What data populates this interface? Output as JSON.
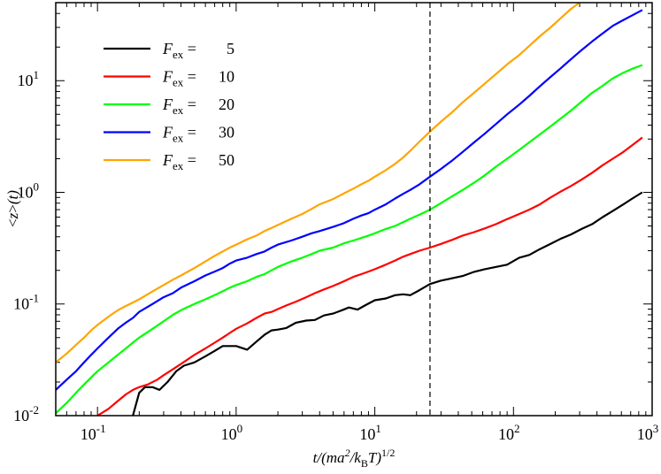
{
  "chart_data": {
    "type": "line",
    "xscale": "log",
    "yscale": "log",
    "xlim": [
      0.05,
      1000
    ],
    "ylim": [
      0.01,
      50
    ],
    "xlabel": "t/(ma2/kBT)1/2",
    "ylabel": "<z>(t)",
    "x_ticks": [
      {
        "value": 0.1,
        "base": "10",
        "exp": "-1"
      },
      {
        "value": 1,
        "base": "10",
        "exp": "0"
      },
      {
        "value": 10,
        "base": "10",
        "exp": "1"
      },
      {
        "value": 100,
        "base": "10",
        "exp": "2"
      },
      {
        "value": 1000,
        "base": "10",
        "exp": "3"
      }
    ],
    "y_ticks": [
      {
        "value": 0.01,
        "base": "10",
        "exp": "-2"
      },
      {
        "value": 0.1,
        "base": "10",
        "exp": "-1"
      },
      {
        "value": 1,
        "base": "10",
        "exp": "0"
      },
      {
        "value": 10,
        "base": "10",
        "exp": "1"
      }
    ],
    "vline": {
      "x": 25,
      "style": "dashed"
    },
    "legend_position": "top-left",
    "series": [
      {
        "name": "Fex = 5",
        "legend_value": "5",
        "color": "#000000",
        "points": [
          [
            0.18,
            0.01
          ],
          [
            0.2,
            0.016
          ],
          [
            0.22,
            0.018
          ],
          [
            0.25,
            0.018
          ],
          [
            0.28,
            0.017
          ],
          [
            0.32,
            0.02
          ],
          [
            0.37,
            0.025
          ],
          [
            0.42,
            0.028
          ],
          [
            0.5,
            0.03
          ],
          [
            0.6,
            0.034
          ],
          [
            0.7,
            0.038
          ],
          [
            0.8,
            0.042
          ],
          [
            0.9,
            0.042
          ],
          [
            1.0,
            0.042
          ],
          [
            1.2,
            0.039
          ],
          [
            1.4,
            0.046
          ],
          [
            1.6,
            0.053
          ],
          [
            1.8,
            0.058
          ],
          [
            2.0,
            0.059
          ],
          [
            2.3,
            0.061
          ],
          [
            2.7,
            0.068
          ],
          [
            3.2,
            0.071
          ],
          [
            3.7,
            0.072
          ],
          [
            4.3,
            0.079
          ],
          [
            5.0,
            0.082
          ],
          [
            5.8,
            0.088
          ],
          [
            6.5,
            0.093
          ],
          [
            7.5,
            0.089
          ],
          [
            8.5,
            0.097
          ],
          [
            10,
            0.108
          ],
          [
            12,
            0.112
          ],
          [
            14,
            0.12
          ],
          [
            16,
            0.122
          ],
          [
            18,
            0.12
          ],
          [
            21,
            0.133
          ],
          [
            25,
            0.151
          ],
          [
            30,
            0.162
          ],
          [
            36,
            0.17
          ],
          [
            43,
            0.178
          ],
          [
            52,
            0.194
          ],
          [
            62,
            0.205
          ],
          [
            75,
            0.215
          ],
          [
            90,
            0.225
          ],
          [
            110,
            0.26
          ],
          [
            130,
            0.275
          ],
          [
            155,
            0.31
          ],
          [
            185,
            0.345
          ],
          [
            220,
            0.385
          ],
          [
            260,
            0.42
          ],
          [
            310,
            0.47
          ],
          [
            370,
            0.52
          ],
          [
            440,
            0.6
          ],
          [
            520,
            0.68
          ],
          [
            620,
            0.78
          ],
          [
            720,
            0.88
          ],
          [
            850,
            1.0
          ]
        ]
      },
      {
        "name": "Fex = 10",
        "legend_value": "10",
        "color": "#ff0000",
        "points": [
          [
            0.1,
            0.01
          ],
          [
            0.12,
            0.0115
          ],
          [
            0.14,
            0.0135
          ],
          [
            0.16,
            0.0155
          ],
          [
            0.18,
            0.017
          ],
          [
            0.2,
            0.018
          ],
          [
            0.23,
            0.019
          ],
          [
            0.27,
            0.021
          ],
          [
            0.3,
            0.023
          ],
          [
            0.35,
            0.026
          ],
          [
            0.4,
            0.029
          ],
          [
            0.45,
            0.032
          ],
          [
            0.5,
            0.035
          ],
          [
            0.6,
            0.04
          ],
          [
            0.7,
            0.045
          ],
          [
            0.8,
            0.05
          ],
          [
            0.9,
            0.055
          ],
          [
            1.0,
            0.06
          ],
          [
            1.2,
            0.067
          ],
          [
            1.4,
            0.075
          ],
          [
            1.6,
            0.082
          ],
          [
            1.8,
            0.085
          ],
          [
            2.0,
            0.09
          ],
          [
            2.3,
            0.097
          ],
          [
            2.7,
            0.105
          ],
          [
            3.2,
            0.115
          ],
          [
            3.7,
            0.125
          ],
          [
            4.3,
            0.135
          ],
          [
            5.0,
            0.145
          ],
          [
            6.0,
            0.16
          ],
          [
            7.0,
            0.175
          ],
          [
            8.0,
            0.185
          ],
          [
            9.0,
            0.195
          ],
          [
            10,
            0.205
          ],
          [
            12,
            0.225
          ],
          [
            14,
            0.245
          ],
          [
            16,
            0.265
          ],
          [
            18,
            0.28
          ],
          [
            21,
            0.3
          ],
          [
            25,
            0.32
          ],
          [
            30,
            0.345
          ],
          [
            36,
            0.375
          ],
          [
            43,
            0.41
          ],
          [
            52,
            0.44
          ],
          [
            62,
            0.475
          ],
          [
            75,
            0.52
          ],
          [
            90,
            0.575
          ],
          [
            110,
            0.64
          ],
          [
            130,
            0.7
          ],
          [
            155,
            0.78
          ],
          [
            185,
            0.9
          ],
          [
            220,
            1.02
          ],
          [
            260,
            1.14
          ],
          [
            310,
            1.3
          ],
          [
            370,
            1.5
          ],
          [
            440,
            1.75
          ],
          [
            520,
            2.0
          ],
          [
            620,
            2.3
          ],
          [
            720,
            2.65
          ],
          [
            850,
            3.1
          ]
        ]
      },
      {
        "name": "Fex = 20",
        "legend_value": "20",
        "color": "#00ff00",
        "points": [
          [
            0.05,
            0.0105
          ],
          [
            0.06,
            0.013
          ],
          [
            0.07,
            0.016
          ],
          [
            0.08,
            0.019
          ],
          [
            0.09,
            0.022
          ],
          [
            0.1,
            0.025
          ],
          [
            0.12,
            0.03
          ],
          [
            0.14,
            0.035
          ],
          [
            0.16,
            0.04
          ],
          [
            0.18,
            0.045
          ],
          [
            0.2,
            0.05
          ],
          [
            0.25,
            0.06
          ],
          [
            0.3,
            0.07
          ],
          [
            0.35,
            0.08
          ],
          [
            0.4,
            0.088
          ],
          [
            0.5,
            0.1
          ],
          [
            0.6,
            0.11
          ],
          [
            0.7,
            0.12
          ],
          [
            0.8,
            0.13
          ],
          [
            0.9,
            0.14
          ],
          [
            1.0,
            0.148
          ],
          [
            1.2,
            0.16
          ],
          [
            1.4,
            0.175
          ],
          [
            1.6,
            0.185
          ],
          [
            1.8,
            0.2
          ],
          [
            2.0,
            0.215
          ],
          [
            2.5,
            0.24
          ],
          [
            3.0,
            0.26
          ],
          [
            3.5,
            0.28
          ],
          [
            4.0,
            0.3
          ],
          [
            5.0,
            0.32
          ],
          [
            6.0,
            0.35
          ],
          [
            7.0,
            0.37
          ],
          [
            8.0,
            0.39
          ],
          [
            9.0,
            0.41
          ],
          [
            10,
            0.43
          ],
          [
            12,
            0.47
          ],
          [
            14,
            0.5
          ],
          [
            16,
            0.54
          ],
          [
            18,
            0.58
          ],
          [
            21,
            0.63
          ],
          [
            25,
            0.7
          ],
          [
            30,
            0.8
          ],
          [
            36,
            0.92
          ],
          [
            43,
            1.05
          ],
          [
            52,
            1.22
          ],
          [
            62,
            1.42
          ],
          [
            75,
            1.7
          ],
          [
            90,
            2.0
          ],
          [
            110,
            2.4
          ],
          [
            130,
            2.8
          ],
          [
            155,
            3.3
          ],
          [
            185,
            3.9
          ],
          [
            220,
            4.6
          ],
          [
            260,
            5.4
          ],
          [
            310,
            6.5
          ],
          [
            370,
            7.8
          ],
          [
            440,
            9.0
          ],
          [
            520,
            10.5
          ],
          [
            620,
            11.8
          ],
          [
            720,
            12.8
          ],
          [
            850,
            13.8
          ]
        ]
      },
      {
        "name": "Fex = 30",
        "legend_value": "30",
        "color": "#0000ff",
        "points": [
          [
            0.05,
            0.017
          ],
          [
            0.06,
            0.021
          ],
          [
            0.07,
            0.025
          ],
          [
            0.08,
            0.03
          ],
          [
            0.09,
            0.035
          ],
          [
            0.1,
            0.04
          ],
          [
            0.12,
            0.05
          ],
          [
            0.14,
            0.06
          ],
          [
            0.16,
            0.068
          ],
          [
            0.18,
            0.075
          ],
          [
            0.2,
            0.085
          ],
          [
            0.25,
            0.1
          ],
          [
            0.3,
            0.115
          ],
          [
            0.35,
            0.125
          ],
          [
            0.4,
            0.14
          ],
          [
            0.5,
            0.16
          ],
          [
            0.6,
            0.18
          ],
          [
            0.7,
            0.195
          ],
          [
            0.8,
            0.21
          ],
          [
            0.9,
            0.23
          ],
          [
            1.0,
            0.245
          ],
          [
            1.2,
            0.26
          ],
          [
            1.4,
            0.28
          ],
          [
            1.6,
            0.295
          ],
          [
            1.8,
            0.32
          ],
          [
            2.0,
            0.34
          ],
          [
            2.5,
            0.37
          ],
          [
            3.0,
            0.4
          ],
          [
            3.5,
            0.43
          ],
          [
            4.0,
            0.45
          ],
          [
            5.0,
            0.49
          ],
          [
            6.0,
            0.53
          ],
          [
            7.0,
            0.58
          ],
          [
            8.0,
            0.62
          ],
          [
            9.0,
            0.65
          ],
          [
            10,
            0.7
          ],
          [
            12,
            0.78
          ],
          [
            14,
            0.88
          ],
          [
            16,
            0.97
          ],
          [
            18,
            1.05
          ],
          [
            21,
            1.18
          ],
          [
            25,
            1.38
          ],
          [
            30,
            1.62
          ],
          [
            36,
            1.92
          ],
          [
            43,
            2.3
          ],
          [
            52,
            2.8
          ],
          [
            62,
            3.35
          ],
          [
            75,
            4.1
          ],
          [
            90,
            5.0
          ],
          [
            110,
            6.1
          ],
          [
            130,
            7.3
          ],
          [
            155,
            8.9
          ],
          [
            185,
            10.8
          ],
          [
            220,
            13.0
          ],
          [
            260,
            15.6
          ],
          [
            310,
            18.8
          ],
          [
            370,
            22.5
          ],
          [
            440,
            26.5
          ],
          [
            520,
            31.0
          ],
          [
            620,
            35.0
          ],
          [
            720,
            38.5
          ],
          [
            850,
            43.0
          ]
        ]
      },
      {
        "name": "Fex = 50",
        "legend_value": "50",
        "color": "#ffa500",
        "points": [
          [
            0.05,
            0.03
          ],
          [
            0.06,
            0.036
          ],
          [
            0.07,
            0.043
          ],
          [
            0.08,
            0.05
          ],
          [
            0.09,
            0.058
          ],
          [
            0.1,
            0.065
          ],
          [
            0.12,
            0.077
          ],
          [
            0.14,
            0.088
          ],
          [
            0.16,
            0.096
          ],
          [
            0.18,
            0.103
          ],
          [
            0.2,
            0.11
          ],
          [
            0.25,
            0.13
          ],
          [
            0.3,
            0.148
          ],
          [
            0.35,
            0.165
          ],
          [
            0.4,
            0.18
          ],
          [
            0.5,
            0.21
          ],
          [
            0.6,
            0.24
          ],
          [
            0.7,
            0.27
          ],
          [
            0.8,
            0.295
          ],
          [
            0.9,
            0.32
          ],
          [
            1.0,
            0.34
          ],
          [
            1.2,
            0.38
          ],
          [
            1.4,
            0.41
          ],
          [
            1.6,
            0.45
          ],
          [
            1.8,
            0.48
          ],
          [
            2.0,
            0.51
          ],
          [
            2.5,
            0.58
          ],
          [
            3.0,
            0.64
          ],
          [
            3.5,
            0.71
          ],
          [
            4.0,
            0.78
          ],
          [
            5.0,
            0.87
          ],
          [
            6.0,
            0.98
          ],
          [
            7.0,
            1.08
          ],
          [
            8.0,
            1.18
          ],
          [
            9.0,
            1.27
          ],
          [
            10,
            1.38
          ],
          [
            12,
            1.58
          ],
          [
            14,
            1.8
          ],
          [
            16,
            2.05
          ],
          [
            18,
            2.35
          ],
          [
            21,
            2.85
          ],
          [
            25,
            3.5
          ],
          [
            30,
            4.3
          ],
          [
            36,
            5.2
          ],
          [
            43,
            6.4
          ],
          [
            52,
            7.8
          ],
          [
            62,
            9.4
          ],
          [
            75,
            11.5
          ],
          [
            90,
            14.0
          ],
          [
            110,
            17.0
          ],
          [
            130,
            20.5
          ],
          [
            155,
            25.0
          ],
          [
            185,
            30.0
          ],
          [
            220,
            36.5
          ],
          [
            260,
            44.0
          ],
          [
            300,
            50.0
          ]
        ]
      }
    ]
  }
}
